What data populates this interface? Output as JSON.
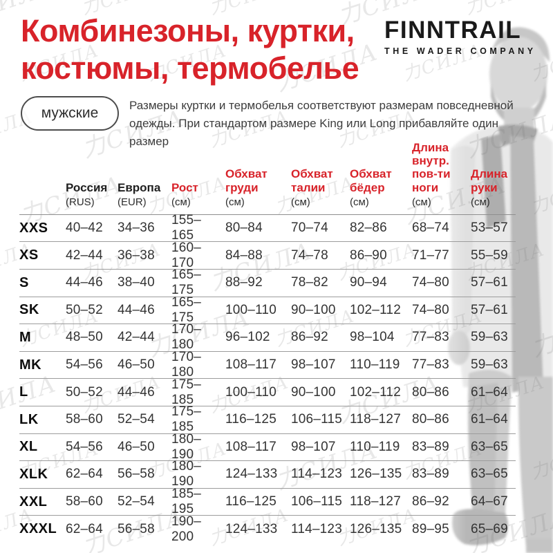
{
  "header": {
    "title_line1": "Комбинезоны, куртки,",
    "title_line2": "костюмы, термобелье",
    "brand": "FINNTRAIL",
    "brand_tagline": "THE WADER COMPANY"
  },
  "intro": {
    "gender_pill": "мужские",
    "note": "Размеры куртки и термобелья соответствуют размерам повседневной одежды. При стандартом размере King или Long прибавляйте один размер"
  },
  "watermark_text": "力СИЛА",
  "colors": {
    "accent_red": "#d8232a",
    "text_dark": "#333333",
    "divider_gray": "#9c9c9c",
    "watermark_gray": "#dadada"
  },
  "chart_data": {
    "type": "table",
    "title": "Таблица размеров мужской одежды FINNTRAIL",
    "columns": [
      {
        "label": "Россия",
        "unit": "(RUS)",
        "red": false
      },
      {
        "label": "Европа",
        "unit": "(EUR)",
        "red": false
      },
      {
        "label": "Рост",
        "unit": "(см)",
        "red": true
      },
      {
        "label": "Обхват\nгруди",
        "unit": "(см)",
        "red": true
      },
      {
        "label": "Обхват\nталии",
        "unit": "(см)",
        "red": true
      },
      {
        "label": "Обхват\nбёдер",
        "unit": "(см)",
        "red": true
      },
      {
        "label": "Длина\nвнутр.\nпов-ти\nноги",
        "unit": "(см)",
        "red": true
      },
      {
        "label": "Длина\nруки",
        "unit": "(см)",
        "red": true
      }
    ],
    "rows": [
      {
        "size": "XXS",
        "values": [
          "40–42",
          "34–36",
          "155–165",
          "80–84",
          "70–74",
          "82–86",
          "68–74",
          "53–57"
        ]
      },
      {
        "size": "XS",
        "values": [
          "42–44",
          "36–38",
          "160–170",
          "84–88",
          "74–78",
          "86–90",
          "71–77",
          "55–59"
        ]
      },
      {
        "size": "S",
        "values": [
          "44–46",
          "38–40",
          "165–175",
          "88–92",
          "78–82",
          "90–94",
          "74–80",
          "57–61"
        ]
      },
      {
        "size": "SK",
        "values": [
          "50–52",
          "44–46",
          "165–175",
          "100–110",
          "90–100",
          "102–112",
          "74–80",
          "57–61"
        ]
      },
      {
        "size": "M",
        "values": [
          "48–50",
          "42–44",
          "170–180",
          "96–102",
          "86–92",
          "98–104",
          "77–83",
          "59–63"
        ]
      },
      {
        "size": "MK",
        "values": [
          "54–56",
          "46–50",
          "170–180",
          "108–117",
          "98–107",
          "110–119",
          "77–83",
          "59–63"
        ]
      },
      {
        "size": "L",
        "values": [
          "50–52",
          "44–46",
          "175–185",
          "100–110",
          "90–100",
          "102–112",
          "80–86",
          "61–64"
        ]
      },
      {
        "size": "LK",
        "values": [
          "58–60",
          "52–54",
          "175–185",
          "116–125",
          "106–115",
          "118–127",
          "80–86",
          "61–64"
        ]
      },
      {
        "size": "XL",
        "values": [
          "54–56",
          "46–50",
          "180–190",
          "108–117",
          "98–107",
          "110–119",
          "83–89",
          "63–65"
        ]
      },
      {
        "size": "XLK",
        "values": [
          "62–64",
          "56–58",
          "180–190",
          "124–133",
          "114–123",
          "126–135",
          "83–89",
          "63–65"
        ]
      },
      {
        "size": "XXL",
        "values": [
          "58–60",
          "52–54",
          "185–195",
          "116–125",
          "106–115",
          "118–127",
          "86–92",
          "64–67"
        ]
      },
      {
        "size": "XXXL",
        "values": [
          "62–64",
          "56–58",
          "190–200",
          "124–133",
          "114–123",
          "126–135",
          "89–95",
          "65–69"
        ]
      }
    ]
  }
}
